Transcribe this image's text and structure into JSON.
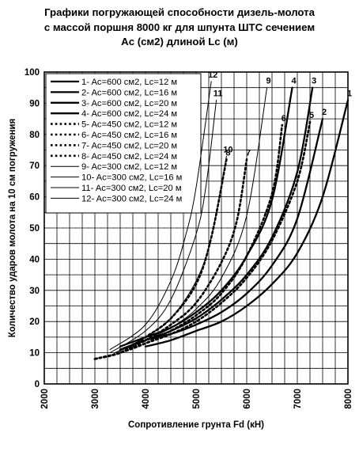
{
  "title_lines": [
    "Графики погружающей способности дизель-молота",
    "с массой поршня 8000 кг для шпунта ШТС сечением",
    "Ac (см2) длиной Lc (м)"
  ],
  "chart_data": {
    "type": "line",
    "title": "Графики погружающей способности дизель-молота с массой поршня 8000 кг для шпунта ШТС сечением Ac (см2) длиной Lc (м)",
    "xlabel": "Сопротивление грунта Fd (кН)",
    "ylabel": "Количество ударов молота на 10 см погружения",
    "xlim": [
      2000,
      8000
    ],
    "ylim": [
      0,
      100
    ],
    "xticks": [
      "2000",
      "3000",
      "4000",
      "5000",
      "6000",
      "7000",
      "8000"
    ],
    "yticks": [
      "0",
      "10",
      "20",
      "30",
      "40",
      "50",
      "60",
      "70",
      "80",
      "90",
      "100"
    ],
    "grid": true,
    "legend_position": "top-left",
    "series": [
      {
        "name": "1- Ac=600 см2, Lc=12 м",
        "label": "1",
        "style": "thick",
        "x": [
          4000,
          4500,
          5000,
          5500,
          6000,
          6500,
          7000,
          7500,
          8000
        ],
        "y": [
          12,
          14,
          17,
          20,
          25,
          32,
          42,
          60,
          91
        ]
      },
      {
        "name": "2- Ac=600 см2, Lc=16 м",
        "label": "2",
        "style": "thick",
        "x": [
          3500,
          4000,
          4500,
          5000,
          5500,
          6000,
          6500,
          7000,
          7500
        ],
        "y": [
          11,
          14,
          16,
          19,
          23,
          29,
          38,
          53,
          85
        ]
      },
      {
        "name": "3- Ac=600 см2, Lc=20 м",
        "label": "3",
        "style": "thick",
        "x": [
          3500,
          4000,
          4500,
          5000,
          5500,
          6000,
          6500,
          7000,
          7300
        ],
        "y": [
          11,
          14,
          17,
          21,
          27,
          35,
          47,
          68,
          95
        ]
      },
      {
        "name": "4- Ac=600 см2, Lc=24 м",
        "label": "4",
        "style": "thick",
        "x": [
          3500,
          4000,
          4500,
          5000,
          5500,
          6000,
          6500,
          6900
        ],
        "y": [
          12,
          15,
          18,
          23,
          30,
          41,
          59,
          95
        ]
      },
      {
        "name": "5- Ac=450 см2, Lc=12 м",
        "label": "5",
        "style": "dotted",
        "x": [
          3000,
          3500,
          4000,
          4500,
          5000,
          5500,
          6000,
          6500,
          7000,
          7250
        ],
        "y": [
          8,
          10,
          13,
          16,
          20,
          26,
          34,
          46,
          65,
          84
        ]
      },
      {
        "name": "6- Ac=450 см2, Lc=16 м",
        "label": "6",
        "style": "dotted",
        "x": [
          3000,
          3500,
          4000,
          4500,
          5000,
          5500,
          6000,
          6500,
          6700
        ],
        "y": [
          8,
          10,
          13,
          17,
          22,
          29,
          41,
          61,
          83
        ]
      },
      {
        "name": "7- Ac=450 см2, Lc=20 м",
        "label": "7",
        "style": "dotted",
        "x": [
          3000,
          3500,
          4000,
          4500,
          5000,
          5500,
          5800,
          6000
        ],
        "y": [
          8,
          10,
          14,
          19,
          26,
          39,
          52,
          72
        ]
      },
      {
        "name": "8- Ac=450 см2, Lc=24 м",
        "label": "8",
        "style": "dotted",
        "x": [
          3000,
          3500,
          4000,
          4500,
          5000,
          5300,
          5600
        ],
        "y": [
          8,
          10,
          15,
          21,
          32,
          47,
          72
        ]
      },
      {
        "name": "9- Ac=300 см2, Lc=12 м",
        "label": "9",
        "style": "thin",
        "x": [
          3400,
          4000,
          4500,
          5000,
          5500,
          6000,
          6400
        ],
        "y": [
          10,
          14,
          18,
          24,
          34,
          54,
          95
        ]
      },
      {
        "name": "10- Ac=300 см2, Lc=16 м",
        "label": "10",
        "style": "thin",
        "x": [
          3400,
          4000,
          4500,
          5000,
          5300,
          5600
        ],
        "y": [
          10,
          15,
          21,
          33,
          47,
          73
        ]
      },
      {
        "name": "11- Ac=300 см2, Lc=20 м",
        "label": "11",
        "style": "thin",
        "x": [
          3300,
          4000,
          4500,
          5000,
          5200,
          5400
        ],
        "y": [
          10,
          17,
          27,
          48,
          64,
          91
        ]
      },
      {
        "name": "12- Ac=300 см2, Lc=24 м",
        "label": "12",
        "style": "thin",
        "x": [
          3300,
          4000,
          4500,
          4800,
          5000,
          5300
        ],
        "y": [
          11,
          19,
          33,
          48,
          63,
          97
        ]
      }
    ]
  }
}
